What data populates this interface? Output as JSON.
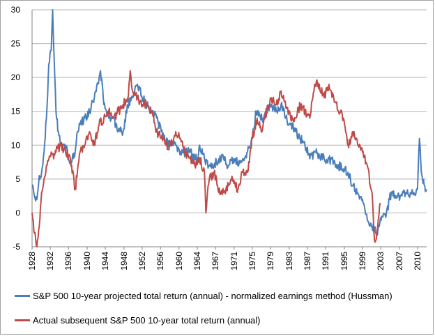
{
  "colors": {
    "series1": "#4a7ebb",
    "series2": "#be4b48",
    "grid": "#b3b3b3",
    "axis": "#808080"
  },
  "chart_data": {
    "type": "line",
    "title": "",
    "xlabel": "",
    "ylabel": "",
    "xlim": [
      1928,
      2010.4
    ],
    "ylim": [
      -5,
      30
    ],
    "yticks": [
      -5,
      0,
      5,
      10,
      15,
      20,
      25,
      30
    ],
    "xticks": [
      "1928",
      "1932",
      "1936",
      "1940",
      "1944",
      "1948",
      "1952",
      "1956",
      "1960",
      "1964",
      "1967",
      "1971",
      "1975",
      "1979",
      "1983",
      "1987",
      "1991",
      "1995",
      "1999",
      "2003",
      "2007",
      "2010"
    ],
    "xtick_positions": [
      1928,
      1931.8,
      1935.6,
      1939.5,
      1943.3,
      1947.2,
      1951,
      1954.8,
      1958.7,
      1962.5,
      1966.3,
      1970.2,
      1974,
      1977.8,
      1981.7,
      1985.5,
      1989.3,
      1993.2,
      1997,
      2000.8,
      2004.7,
      2008.5
    ],
    "grid": "horizontal",
    "legend_position": "bottom",
    "series": [
      {
        "name": "S&P 500 10-year projected total return (annual)  - normalized earnings method (Hussman)",
        "x": [
          1928,
          1928.5,
          1929,
          1929.5,
          1930,
          1930.5,
          1931,
          1931.5,
          1932,
          1932.3,
          1932.6,
          1933,
          1933.5,
          1934,
          1935,
          1936,
          1937,
          1937.5,
          1938,
          1939,
          1940,
          1941,
          1942,
          1942.3,
          1943,
          1944,
          1945,
          1946,
          1947,
          1948,
          1949,
          1950,
          1951,
          1952,
          1953,
          1954,
          1955,
          1956,
          1957,
          1958,
          1959,
          1960,
          1961,
          1962,
          1962.5,
          1963,
          1964,
          1965,
          1966,
          1967,
          1968,
          1969,
          1970,
          1971,
          1972,
          1973,
          1974,
          1974.8,
          1975,
          1976,
          1977,
          1978,
          1979,
          1980,
          1981,
          1982,
          1983,
          1984,
          1985,
          1986,
          1987,
          1988,
          1989,
          1990,
          1991,
          1992,
          1993,
          1994,
          1995,
          1996,
          1997,
          1998,
          1999,
          2000,
          2000.5,
          2001,
          2002,
          2003,
          2004,
          2005,
          2006,
          2007,
          2007.5,
          2008.5,
          2008.9,
          2009.3,
          2010,
          2010.4
        ],
        "y": [
          4,
          2.5,
          2,
          5.5,
          6,
          9,
          14,
          22,
          24,
          30,
          23,
          15,
          12,
          10,
          10,
          7.5,
          9,
          12,
          13,
          14,
          15,
          17,
          20,
          21,
          16,
          14,
          14,
          12,
          12,
          16,
          17,
          19,
          17,
          16,
          15,
          14,
          12,
          10.5,
          10,
          10,
          9,
          9,
          9,
          8,
          8,
          10,
          8,
          7,
          7,
          8,
          8,
          7,
          8,
          7.5,
          8,
          9,
          11,
          15,
          15,
          14,
          15,
          16,
          15,
          16,
          14,
          13,
          12,
          11,
          10,
          8,
          9,
          8.5,
          8,
          8,
          7.5,
          7,
          6.5,
          6,
          4,
          3,
          2,
          -1,
          -2,
          -3,
          -2,
          -0.5,
          0,
          3,
          2.5,
          2.5,
          3,
          3,
          3,
          3.5,
          11,
          6,
          4,
          3.5
        ]
      },
      {
        "name": "Actual subsequent S&P 500 10-year total return (annual)",
        "x": [
          1928,
          1928.5,
          1929,
          1929.5,
          1930,
          1930.5,
          1931,
          1932,
          1932.5,
          1933,
          1934,
          1935,
          1936,
          1937,
          1938,
          1939,
          1940,
          1941,
          1942,
          1943,
          1944,
          1945,
          1946,
          1947,
          1948,
          1948.5,
          1949,
          1950,
          1951,
          1952,
          1953,
          1954,
          1955,
          1956,
          1957,
          1958,
          1959,
          1960,
          1961,
          1962,
          1963,
          1964,
          1964.3,
          1965,
          1966,
          1967,
          1968,
          1969,
          1970,
          1971,
          1972,
          1973,
          1974,
          1975,
          1976,
          1977,
          1978,
          1979,
          1980,
          1981,
          1982,
          1983,
          1984,
          1985,
          1986,
          1987,
          1988,
          1989,
          1990,
          1991,
          1992,
          1993,
          1994,
          1995,
          1996,
          1997,
          1998,
          1999,
          1999.5,
          2000,
          2000.3,
          2000.7
        ],
        "y": [
          0,
          -3,
          -5,
          -2,
          3,
          5,
          7,
          9,
          8,
          9,
          10,
          9,
          8,
          3.5,
          9,
          10,
          12,
          10,
          13,
          14,
          15,
          14,
          15,
          16,
          17,
          21,
          18,
          17,
          16,
          16,
          15,
          12,
          11,
          10,
          10,
          12,
          11,
          8.5,
          8,
          7,
          8,
          6,
          0,
          5,
          6,
          3,
          3,
          4,
          5,
          3.5,
          6,
          6,
          11,
          14,
          12,
          15,
          17,
          16,
          18,
          15.5,
          14,
          14,
          16,
          15,
          14,
          19,
          19,
          17,
          19,
          17,
          15,
          14,
          10,
          12,
          10,
          9,
          7,
          3,
          -4,
          -3,
          -1,
          1.5
        ]
      }
    ]
  }
}
